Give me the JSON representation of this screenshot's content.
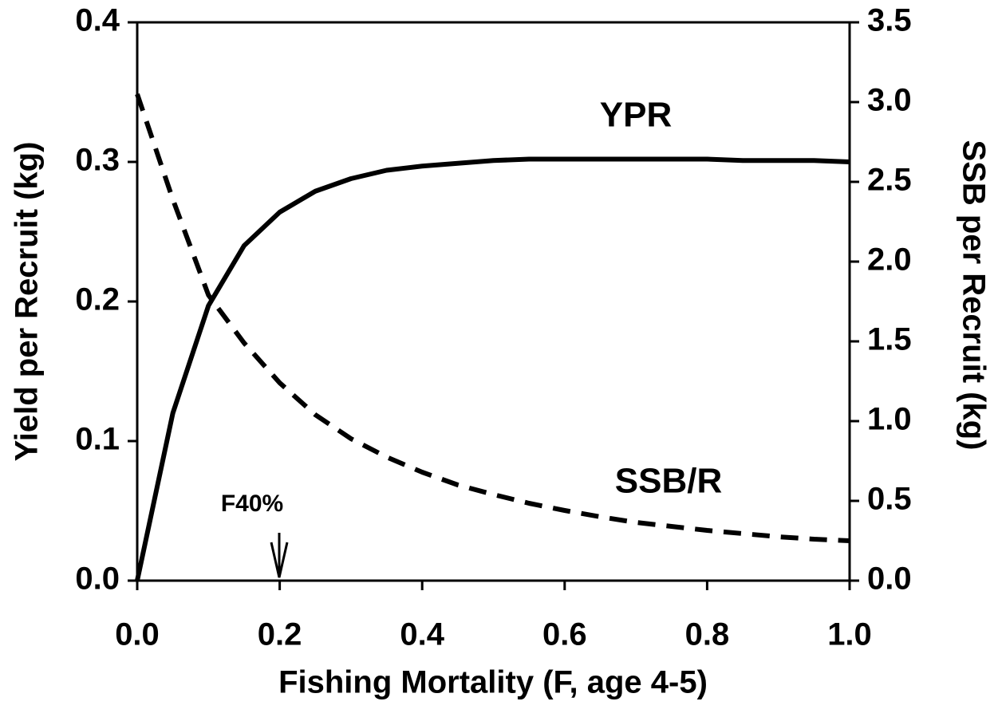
{
  "chart_data": {
    "type": "line",
    "xlabel": "Fishing Mortality (F, age 4-5)",
    "ylabel": "Yield per Recruit (kg)",
    "y2label": "SSB per Recruit (kg)",
    "annotations": [
      "YPR",
      "SSB/R",
      "F40%"
    ],
    "x": [
      0,
      0.05,
      0.1,
      0.15,
      0.2,
      0.25,
      0.3,
      0.35,
      0.4,
      0.45,
      0.5,
      0.55,
      0.6,
      0.65,
      0.7,
      0.75,
      0.8,
      0.85,
      0.9,
      0.95,
      1.0
    ],
    "series": [
      {
        "name": "YPR",
        "color": "#000000",
        "style": "solid",
        "values": [
          0,
          0.12,
          0.197,
          0.24,
          0.264,
          0.279,
          0.288,
          0.294,
          0.297,
          0.299,
          0.301,
          0.302,
          0.302,
          0.302,
          0.302,
          0.302,
          0.302,
          0.301,
          0.301,
          0.301,
          0.3
        ]
      },
      {
        "name": "SSB/R",
        "color": "#000000",
        "style": "dashed",
        "axis": "y2",
        "values": [
          3.05,
          2.39,
          1.79,
          1.49,
          1.24,
          1.04,
          0.89,
          0.775,
          0.68,
          0.6,
          0.54,
          0.485,
          0.44,
          0.4,
          0.365,
          0.34,
          0.315,
          0.295,
          0.275,
          0.26,
          0.25
        ]
      }
    ],
    "xlim": [
      0,
      1.0
    ],
    "xticks": [
      {
        "value": 0,
        "label": "0.0"
      },
      0.2,
      0.4,
      0.6,
      0.8,
      {
        "value": 1.0,
        "label": "1.0"
      }
    ],
    "ylim": [
      0,
      0.4
    ],
    "yticks": [
      {
        "value": 0,
        "label": "0.0"
      },
      0.1,
      0.2,
      0.3,
      0.4
    ],
    "y2lim": [
      0,
      3.5
    ],
    "y2ticks": [
      {
        "value": 0,
        "label": "0.0"
      },
      0.5,
      {
        "value": 1.0,
        "label": "1.0"
      },
      1.5,
      {
        "value": 2.0,
        "label": "2.0"
      },
      2.5,
      {
        "value": 3.0,
        "label": "3.0"
      },
      3.5
    ],
    "grid": false
  }
}
